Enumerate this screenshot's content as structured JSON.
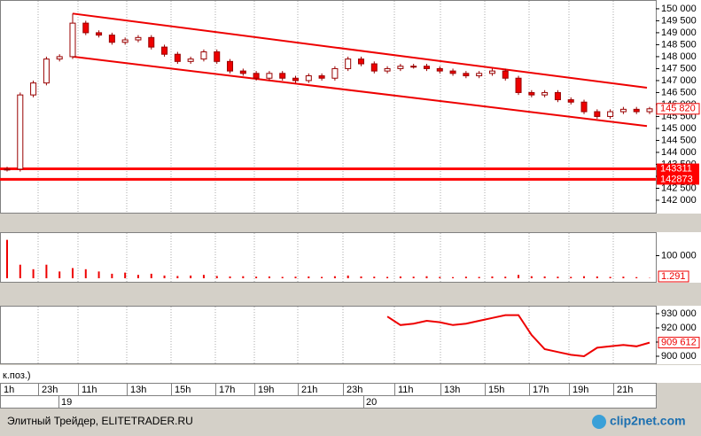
{
  "chart_data": {
    "type": "candlestick",
    "ylim": [
      141480,
      150330
    ],
    "yticks": [
      {
        "value": 142000,
        "label": "142 000"
      },
      {
        "value": 142500,
        "label": "142 500"
      },
      {
        "value": 143000,
        "label": "143 000"
      },
      {
        "value": 143500,
        "label": "143 500"
      },
      {
        "value": 144000,
        "label": "144 000"
      },
      {
        "value": 144500,
        "label": "144 500"
      },
      {
        "value": 145000,
        "label": "145 000"
      },
      {
        "value": 145500,
        "label": "145 500"
      },
      {
        "value": 146000,
        "label": "146 000"
      },
      {
        "value": 146500,
        "label": "146 500"
      },
      {
        "value": 147000,
        "label": "147 000"
      },
      {
        "value": 147500,
        "label": "147 500"
      },
      {
        "value": 148000,
        "label": "148 000"
      },
      {
        "value": 148500,
        "label": "148 500"
      },
      {
        "value": 149000,
        "label": "149 000"
      },
      {
        "value": 149500,
        "label": "149 500"
      },
      {
        "value": 150000,
        "label": "150 000"
      }
    ],
    "candles": [
      [
        143300,
        143400,
        143200,
        143300
      ],
      [
        143300,
        146500,
        143200,
        146400
      ],
      [
        146400,
        147000,
        146300,
        146900
      ],
      [
        146900,
        148000,
        146800,
        147900
      ],
      [
        147900,
        148100,
        147800,
        148000
      ],
      [
        148000,
        149800,
        147900,
        149400
      ],
      [
        149400,
        149500,
        148900,
        149000
      ],
      [
        149000,
        149100,
        148800,
        148900
      ],
      [
        148900,
        149000,
        148500,
        148600
      ],
      [
        148600,
        148800,
        148500,
        148700
      ],
      [
        148700,
        148900,
        148600,
        148800
      ],
      [
        148800,
        148900,
        148300,
        148400
      ],
      [
        148400,
        148500,
        148000,
        148100
      ],
      [
        148100,
        148200,
        147700,
        147800
      ],
      [
        147800,
        148000,
        147700,
        147900
      ],
      [
        147900,
        148300,
        147800,
        148200
      ],
      [
        148200,
        148300,
        147700,
        147800
      ],
      [
        147800,
        147900,
        147300,
        147400
      ],
      [
        147400,
        147500,
        147200,
        147300
      ],
      [
        147300,
        147400,
        147000,
        147100
      ],
      [
        147100,
        147400,
        147000,
        147300
      ],
      [
        147300,
        147400,
        147000,
        147100
      ],
      [
        147100,
        147200,
        146900,
        147000
      ],
      [
        147000,
        147300,
        146900,
        147200
      ],
      [
        147200,
        147300,
        147000,
        147100
      ],
      [
        147100,
        147600,
        147000,
        147500
      ],
      [
        147500,
        148000,
        147400,
        147900
      ],
      [
        147900,
        148000,
        147600,
        147700
      ],
      [
        147700,
        147800,
        147300,
        147400
      ],
      [
        147400,
        147600,
        147300,
        147500
      ],
      [
        147500,
        147700,
        147400,
        147600
      ],
      [
        147600,
        147700,
        147500,
        147600
      ],
      [
        147600,
        147700,
        147400,
        147500
      ],
      [
        147500,
        147600,
        147300,
        147400
      ],
      [
        147400,
        147500,
        147200,
        147300
      ],
      [
        147300,
        147400,
        147100,
        147200
      ],
      [
        147200,
        147400,
        147100,
        147300
      ],
      [
        147300,
        147500,
        147200,
        147400
      ],
      [
        147400,
        147500,
        147000,
        147100
      ],
      [
        147100,
        147200,
        146400,
        146500
      ],
      [
        146500,
        146600,
        146300,
        146400
      ],
      [
        146400,
        146600,
        146300,
        146500
      ],
      [
        146500,
        146600,
        146100,
        146200
      ],
      [
        146200,
        146300,
        146000,
        146100
      ],
      [
        146100,
        146200,
        145600,
        145700
      ],
      [
        145700,
        145800,
        145400,
        145500
      ],
      [
        145500,
        145800,
        145400,
        145700
      ],
      [
        145700,
        145900,
        145600,
        145800
      ],
      [
        145800,
        145900,
        145600,
        145700
      ],
      [
        145700,
        145900,
        145600,
        145820
      ]
    ],
    "last_label": "145 820",
    "levels": [
      {
        "value": 143311,
        "label": "143311"
      },
      {
        "value": 142873,
        "label": "142873"
      }
    ],
    "channel": {
      "upper": [
        149800,
        146700
      ],
      "lower": [
        148000,
        145100
      ]
    },
    "volume": {
      "ylim": [
        0,
        200000
      ],
      "yticks": [
        {
          "value": 100000,
          "label": "100 000"
        }
      ],
      "values": [
        170000,
        60000,
        40000,
        60000,
        30000,
        45000,
        40000,
        30000,
        20000,
        25000,
        15000,
        20000,
        12000,
        10000,
        12000,
        15000,
        10000,
        8000,
        9000,
        7000,
        8000,
        6000,
        7000,
        8000,
        6000,
        9000,
        12000,
        8000,
        7000,
        6000,
        8000,
        7000,
        9000,
        6000,
        5000,
        7000,
        6000,
        8000,
        7000,
        15000,
        9000,
        8000,
        7000,
        6000,
        9000,
        8000,
        6000,
        7000,
        5000,
        1291
      ],
      "last_label": "1.291"
    },
    "oi": {
      "ylim": [
        895000,
        935000
      ],
      "yticks": [
        {
          "value": 900000,
          "label": "900 000"
        },
        {
          "value": 910000,
          "label": "910 000"
        },
        {
          "value": 920000,
          "label": "920 000"
        },
        {
          "value": 930000,
          "label": "930 000"
        }
      ],
      "values": [
        null,
        null,
        null,
        null,
        null,
        null,
        null,
        null,
        null,
        null,
        null,
        null,
        null,
        null,
        null,
        null,
        null,
        null,
        null,
        null,
        null,
        null,
        null,
        null,
        null,
        null,
        null,
        null,
        null,
        928000,
        922000,
        923000,
        925000,
        924000,
        922000,
        923000,
        925000,
        927000,
        929000,
        929000,
        915000,
        905000,
        903000,
        901000,
        900000,
        906000,
        907000,
        908000,
        907000,
        909612
      ],
      "last_label": "909 612",
      "label": "к.поз.)"
    },
    "time_labels": [
      "1h",
      "23h",
      "11h",
      "13h",
      "15h",
      "17h",
      "19h",
      "21h",
      "23h",
      "11h",
      "13h",
      "15h",
      "17h",
      "19h",
      "21h"
    ],
    "date_labels": [
      "19",
      "20"
    ]
  },
  "footer": {
    "source": "Элитный Трейдер, ELITETRADER.RU",
    "logo": "clip2net.com"
  }
}
